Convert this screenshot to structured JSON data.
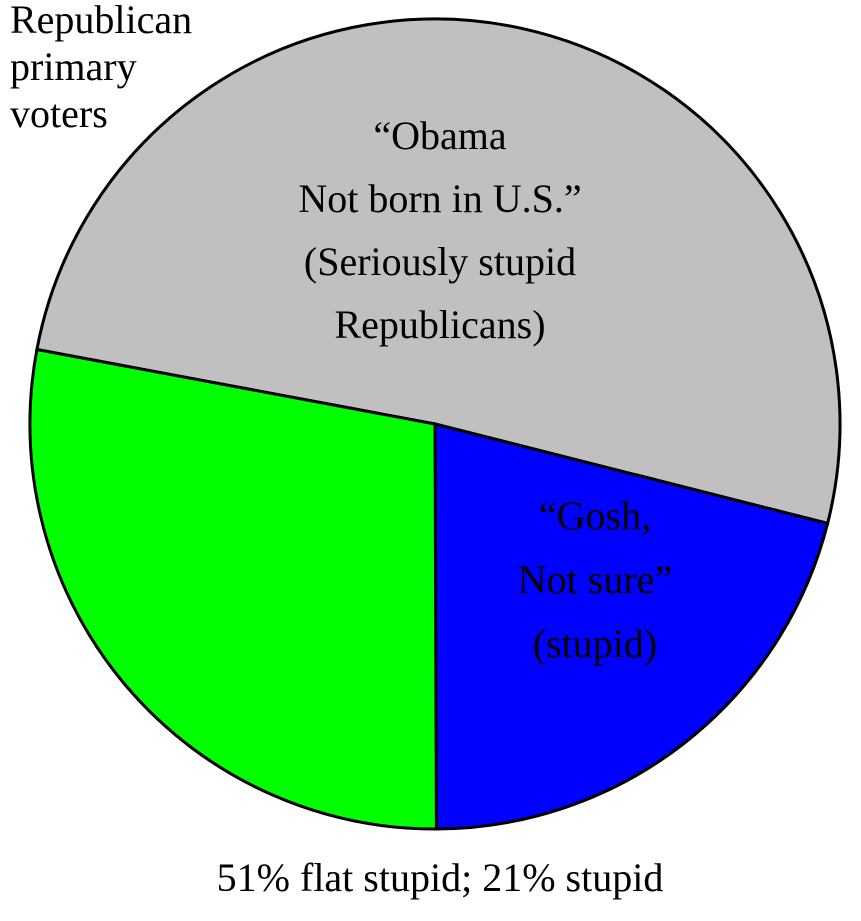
{
  "chart_data": {
    "type": "pie",
    "title": [
      "Republican",
      "primary",
      "voters"
    ],
    "caption": "51% flat stupid; 21% stupid",
    "categories": [
      [
        "“Obama",
        "Not born in U.S.”",
        "(Seriously stupid",
        "Republicans)"
      ],
      [
        "“Gosh,",
        "Not sure”",
        "(stupid)"
      ],
      null
    ],
    "values": [
      51,
      21,
      28
    ],
    "colors": [
      "#c0c0c0",
      "#0000ff",
      "#00ff00"
    ],
    "label_colors": [
      "#000000",
      "#ffffff",
      null
    ]
  }
}
